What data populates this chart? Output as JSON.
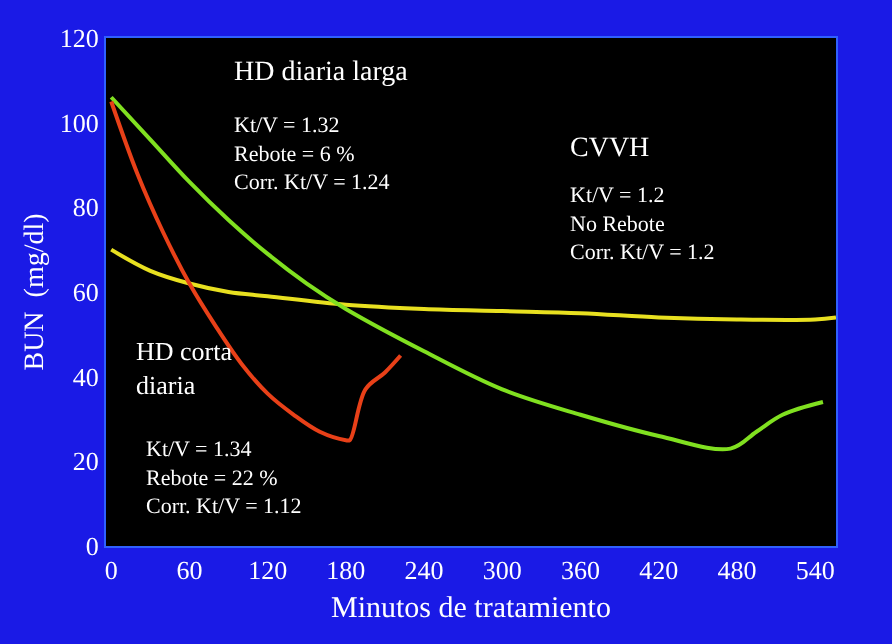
{
  "chart_data": {
    "type": "line",
    "xlabel": "Minutos de tratamiento",
    "ylabel": "BUN  (mg/dl)",
    "xlim": [
      -4,
      556
    ],
    "ylim": [
      0,
      120
    ],
    "xticks": [
      0,
      60,
      120,
      180,
      240,
      300,
      360,
      420,
      480,
      540
    ],
    "yticks": [
      0,
      20,
      40,
      60,
      80,
      100,
      120
    ],
    "grid": false,
    "marker": "none",
    "line_style": "solid",
    "series": [
      {
        "color": "#e8e020",
        "x": [
          0,
          30,
          60,
          90,
          120,
          180,
          240,
          300,
          360,
          420,
          480,
          540,
          556
        ],
        "values": [
          70,
          65,
          62,
          60,
          59,
          57,
          56,
          55.5,
          55,
          54,
          53.5,
          53.5,
          54
        ]
      },
      {
        "color": "#80e020",
        "x": [
          0,
          30,
          60,
          90,
          120,
          150,
          180,
          240,
          300,
          360,
          420,
          475,
          495,
          515,
          546
        ],
        "values": [
          106,
          96,
          86,
          77,
          69,
          62,
          56,
          46,
          37,
          31,
          26,
          23,
          27,
          31,
          34
        ]
      },
      {
        "color": "#e84018",
        "x": [
          0,
          20,
          40,
          60,
          80,
          100,
          120,
          140,
          160,
          180,
          183,
          195,
          210,
          222
        ],
        "values": [
          105,
          88,
          74,
          62,
          52,
          43,
          36,
          31,
          27,
          25,
          25,
          37,
          41,
          45
        ]
      }
    ],
    "annotations": [
      "HD diaria larga",
      "Kt/V = 1.32\nRebote = 6 %\nCorr. Kt/V = 1.24",
      "CVVH",
      "Kt/V = 1.2\nNo Rebote\nCorr. Kt/V = 1.2",
      "HD corta\ndiaria",
      "Kt/V = 1.34\nRebote = 22 %\nCorr. Kt/V = 1.12"
    ]
  }
}
